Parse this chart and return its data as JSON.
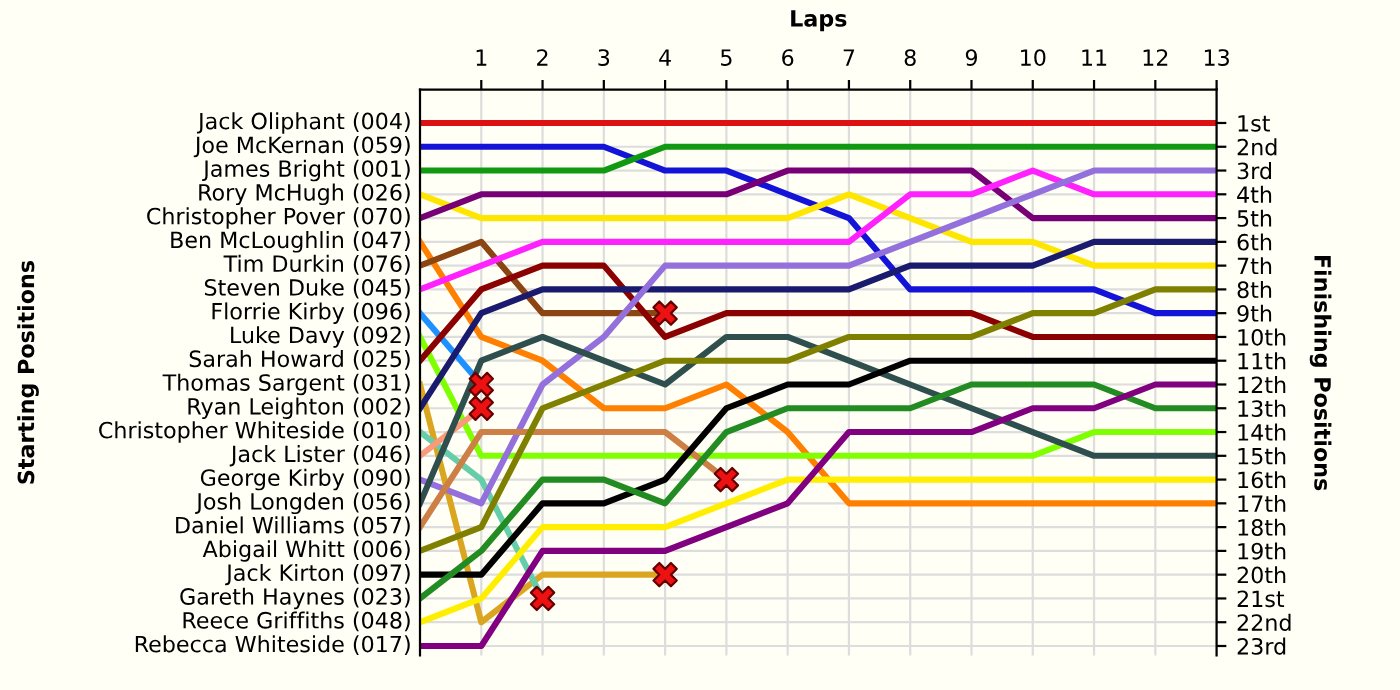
{
  "chart_data": {
    "type": "line",
    "xlabel": "Laps",
    "ylabel": "Finishing Positions",
    "x": [
      0,
      1,
      2,
      3,
      4,
      5,
      6,
      7,
      8,
      9,
      10,
      11,
      12,
      13
    ],
    "xlim": [
      0,
      13
    ],
    "xticks": [
      1,
      2,
      3,
      4,
      5,
      6,
      7,
      8,
      9,
      10,
      11,
      12,
      13
    ],
    "ylim": [
      23.4,
      -0.4
    ],
    "yticks": [
      {
        "value": 1,
        "label": "1st"
      },
      {
        "value": 2,
        "label": "2nd"
      },
      {
        "value": 3,
        "label": "3rd"
      },
      {
        "value": 4,
        "label": "4th"
      },
      {
        "value": 5,
        "label": "5th"
      },
      {
        "value": 6,
        "label": "6th"
      },
      {
        "value": 7,
        "label": "7th"
      },
      {
        "value": 8,
        "label": "8th"
      },
      {
        "value": 9,
        "label": "9th"
      },
      {
        "value": 10,
        "label": "10th"
      },
      {
        "value": 11,
        "label": "11th"
      },
      {
        "value": 12,
        "label": "12th"
      },
      {
        "value": 13,
        "label": "13th"
      },
      {
        "value": 14,
        "label": "14th"
      },
      {
        "value": 15,
        "label": "15th"
      },
      {
        "value": 16,
        "label": "16th"
      },
      {
        "value": 17,
        "label": "17th"
      },
      {
        "value": 18,
        "label": "18th"
      },
      {
        "value": 19,
        "label": "19th"
      },
      {
        "value": 20,
        "label": "20th"
      },
      {
        "value": 21,
        "label": "21st"
      },
      {
        "value": 22,
        "label": "22nd"
      },
      {
        "value": 23,
        "label": "23rd"
      }
    ],
    "annotations": [
      "Starting Positions"
    ],
    "grid": true,
    "legend": "left",
    "marker": "none",
    "line_style": "solid",
    "series": [
      {
        "name": "Jack Oliphant (004)",
        "color": "#dd1111",
        "values": [
          1,
          1,
          1,
          1,
          1,
          1,
          1,
          1,
          1,
          1,
          1,
          1,
          1,
          1
        ]
      },
      {
        "name": "Joe McKernan (059)",
        "color": "#1414d8",
        "values": [
          2,
          2,
          2,
          2,
          3,
          3,
          4,
          5,
          8,
          8,
          8,
          8,
          9,
          9
        ]
      },
      {
        "name": "James Bright (001)",
        "color": "#119911",
        "values": [
          3,
          3,
          3,
          3,
          2,
          2,
          2,
          2,
          2,
          2,
          2,
          2,
          2,
          2
        ]
      },
      {
        "name": "Rory McHugh (026)",
        "color": "#ffe600",
        "values": [
          4,
          5,
          5,
          5,
          5,
          5,
          5,
          4,
          5,
          6,
          6,
          7,
          7,
          7
        ]
      },
      {
        "name": "Christopher Pover (070)",
        "color": "#770077",
        "values": [
          5,
          4,
          4,
          4,
          4,
          4,
          3,
          3,
          3,
          3,
          5,
          5,
          5,
          5
        ]
      },
      {
        "name": "Ben McLoughlin (047)",
        "color": "#ff8000",
        "values": [
          6,
          10,
          11,
          13,
          13,
          12,
          14,
          17,
          17,
          17,
          17,
          17,
          17,
          17
        ]
      },
      {
        "name": "Tim Durkin (076)",
        "color": "#8b4513",
        "values": [
          7,
          6,
          9,
          9,
          9,
          null,
          null,
          null,
          null,
          null,
          null,
          null,
          null,
          null
        ]
      },
      {
        "name": "Steven Duke (045)",
        "color": "#ff22ff",
        "values": [
          8,
          7,
          6,
          6,
          6,
          6,
          6,
          6,
          4,
          4,
          3,
          4,
          4,
          4
        ]
      },
      {
        "name": "Florrie Kirby (096)",
        "color": "#1e90ff",
        "values": [
          9,
          12,
          null,
          null,
          null,
          null,
          null,
          null,
          null,
          null,
          null,
          null,
          null,
          null
        ]
      },
      {
        "name": "Luke Davy (092)",
        "color": "#7fff00",
        "values": [
          10,
          15,
          15,
          15,
          15,
          15,
          15,
          15,
          15,
          15,
          15,
          14,
          14,
          14
        ]
      },
      {
        "name": "Sarah Howard (025)",
        "color": "#8b0000",
        "values": [
          11,
          8,
          7,
          7,
          10,
          9,
          9,
          9,
          9,
          9,
          10,
          10,
          10,
          10
        ]
      },
      {
        "name": "Thomas Sargent (031)",
        "color": "#daa520",
        "values": [
          12,
          22,
          20,
          20,
          20,
          null,
          null,
          null,
          null,
          null,
          null,
          null,
          null,
          null
        ]
      },
      {
        "name": "Ryan Leighton (002)",
        "color": "#1a1a6e",
        "values": [
          13,
          9,
          8,
          8,
          8,
          8,
          8,
          8,
          7,
          7,
          7,
          6,
          6,
          6
        ]
      },
      {
        "name": "Christopher Whiteside (010)",
        "color": "#66cdaa",
        "values": [
          14,
          16,
          21,
          null,
          null,
          null,
          null,
          null,
          null,
          null,
          null,
          null,
          null,
          null
        ]
      },
      {
        "name": "Jack Lister (046)",
        "color": "#fa9a7a",
        "values": [
          15,
          13,
          null,
          null,
          null,
          null,
          null,
          null,
          null,
          null,
          null,
          null,
          null,
          null
        ]
      },
      {
        "name": "George Kirby (090)",
        "color": "#9370db",
        "values": [
          16,
          17,
          12,
          10,
          7,
          7,
          7,
          7,
          6,
          5,
          4,
          3,
          3,
          3
        ]
      },
      {
        "name": "Josh Longden (056)",
        "color": "#2f4f4f",
        "values": [
          17,
          11,
          10,
          11,
          12,
          10,
          10,
          11,
          12,
          13,
          14,
          15,
          15,
          15
        ]
      },
      {
        "name": "Daniel Williams (057)",
        "color": "#cd7f45",
        "values": [
          18,
          14,
          14,
          14,
          14,
          16,
          null,
          null,
          null,
          null,
          null,
          null,
          null,
          null
        ]
      },
      {
        "name": "Abigail Whitt (006)",
        "color": "#808000",
        "values": [
          19,
          18,
          13,
          12,
          11,
          11,
          11,
          10,
          10,
          10,
          9,
          9,
          8,
          8
        ]
      },
      {
        "name": "Jack Kirton (097)",
        "color": "#000000",
        "values": [
          20,
          20,
          17,
          17,
          16,
          13,
          12,
          12,
          11,
          11,
          11,
          11,
          11,
          11
        ]
      },
      {
        "name": "Gareth Haynes (023)",
        "color": "#228b22",
        "values": [
          21,
          19,
          16,
          16,
          17,
          14,
          13,
          13,
          13,
          12,
          12,
          12,
          13,
          13
        ]
      },
      {
        "name": "Reece Griffiths (048)",
        "color": "#ffee00",
        "values": [
          22,
          21,
          18,
          18,
          18,
          17,
          16,
          16,
          16,
          16,
          16,
          16,
          16,
          16
        ]
      },
      {
        "name": "Rebecca Whiteside (017)",
        "color": "#800080",
        "values": [
          23,
          23,
          19,
          19,
          19,
          18,
          17,
          14,
          14,
          14,
          13,
          13,
          12,
          12
        ]
      },
      {
        "type": "scatter",
        "marker": "cross",
        "color": "#ee1111",
        "x": [
          1,
          1,
          2,
          4,
          4,
          5
        ],
        "values": [
          12,
          13,
          21,
          9,
          20,
          16
        ]
      }
    ]
  }
}
